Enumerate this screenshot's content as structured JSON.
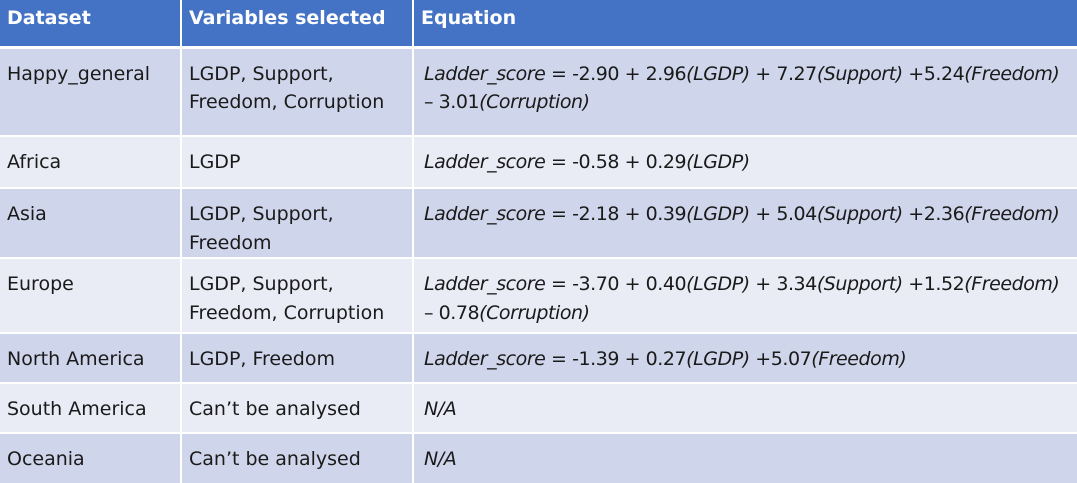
{
  "table": {
    "headers": [
      "Dataset",
      "Variables selected",
      "Equation"
    ],
    "rows": [
      {
        "dataset": "Happy_general",
        "variables": [
          "LGDP, Support,",
          "Freedom, Corruption"
        ],
        "equation": [
          "Ladder_score = -2.90 + 2.96(LGDP) + 7.27(Support) +5.24(Freedom)",
          "– 3.01(Corruption)"
        ]
      },
      {
        "dataset": "Africa",
        "variables": [
          "LGDP"
        ],
        "equation": [
          "Ladder_score = -0.58 + 0.29(LGDP)"
        ]
      },
      {
        "dataset": "Asia",
        "variables": [
          "LGDP, Support,",
          "Freedom"
        ],
        "equation": [
          "Ladder_score = -2.18 + 0.39(LGDP) + 5.04(Support) +2.36(Freedom)"
        ]
      },
      {
        "dataset": "Europe",
        "variables": [
          "LGDP, Support,",
          "Freedom, Corruption"
        ],
        "equation": [
          "Ladder_score = -3.70 + 0.40(LGDP) + 3.34(Support) +1.52(Freedom)",
          "– 0.78(Corruption)"
        ]
      },
      {
        "dataset": "North America",
        "variables": [
          "LGDP, Freedom"
        ],
        "equation": [
          "Ladder_score = -1.39 + 0.27(LGDP) +5.07(Freedom)"
        ]
      },
      {
        "dataset": "South America",
        "variables": [
          "Can’t be analysed"
        ],
        "equation": [
          "N/A"
        ]
      },
      {
        "dataset": "Oceania",
        "variables": [
          "Can’t be analysed"
        ],
        "equation": [
          "N/A"
        ]
      }
    ]
  },
  "colors": {
    "header_background": "#4472c4",
    "header_text": "#ffffff",
    "row_odd": "#cfd5ea",
    "row_even": "#e9ebf5",
    "grid_lines": "#ffffff"
  }
}
